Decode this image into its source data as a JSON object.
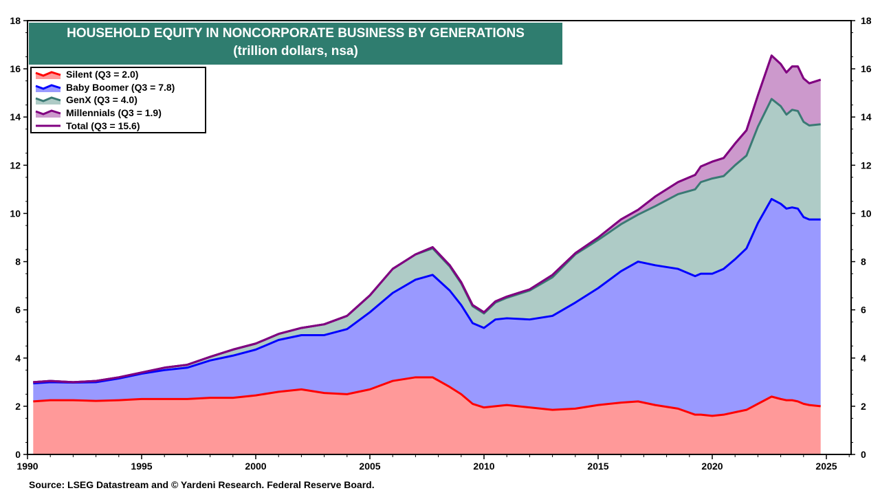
{
  "chart_data": {
    "type": "area",
    "stacked": true,
    "title": "HOUSEHOLD EQUITY IN NONCORPORATE BUSINESS BY GENERATIONS",
    "subtitle": "(trillion dollars, nsa)",
    "xlim": [
      1990,
      2026
    ],
    "ylim": [
      0,
      18
    ],
    "x_ticks": [
      "1990",
      "1995",
      "2000",
      "2005",
      "2010",
      "2015",
      "2020",
      "2025"
    ],
    "y_ticks": [
      "0",
      "2",
      "4",
      "6",
      "8",
      "10",
      "12",
      "14",
      "16",
      "18"
    ],
    "grid": false,
    "legend_position": "top-left",
    "x": [
      1990.25,
      1991,
      1992,
      1993,
      1994,
      1995,
      1996,
      1997,
      1998,
      1999,
      2000,
      2001,
      2002,
      2003,
      2004,
      2005,
      2006,
      2007,
      2007.75,
      2008.5,
      2009,
      2009.5,
      2010,
      2010.5,
      2011,
      2012,
      2013,
      2014,
      2015,
      2016,
      2016.75,
      2017.5,
      2018.5,
      2019.25,
      2019.5,
      2020,
      2020.5,
      2021,
      2021.5,
      2022,
      2022.6,
      2023,
      2023.25,
      2023.5,
      2023.75,
      2024,
      2024.25,
      2024.75
    ],
    "series": [
      {
        "name": "Silent",
        "legend": "Silent (Q3 = 2.0)",
        "fill": "#ff9999",
        "line": "#ff0000",
        "values": [
          2.2,
          2.25,
          2.25,
          2.22,
          2.25,
          2.3,
          2.3,
          2.3,
          2.35,
          2.35,
          2.45,
          2.6,
          2.7,
          2.55,
          2.5,
          2.7,
          3.05,
          3.2,
          3.2,
          2.8,
          2.5,
          2.1,
          1.95,
          2.0,
          2.05,
          1.95,
          1.85,
          1.9,
          2.05,
          2.15,
          2.2,
          2.05,
          1.9,
          1.65,
          1.65,
          1.6,
          1.65,
          1.75,
          1.85,
          2.1,
          2.4,
          2.3,
          2.25,
          2.25,
          2.2,
          2.1,
          2.05,
          2.0
        ]
      },
      {
        "name": "Baby Boomer",
        "legend": "Baby Boomer (Q3 = 7.8)",
        "fill": "#9999ff",
        "line": "#0000ff",
        "values": [
          0.75,
          0.75,
          0.73,
          0.78,
          0.9,
          1.05,
          1.2,
          1.3,
          1.55,
          1.75,
          1.9,
          2.15,
          2.25,
          2.4,
          2.7,
          3.2,
          3.65,
          4.05,
          4.25,
          4.0,
          3.7,
          3.35,
          3.3,
          3.6,
          3.6,
          3.65,
          3.9,
          4.4,
          4.85,
          5.45,
          5.8,
          5.8,
          5.8,
          5.75,
          5.85,
          5.9,
          6.05,
          6.35,
          6.7,
          7.5,
          8.2,
          8.1,
          7.95,
          8.0,
          8.0,
          7.75,
          7.7,
          7.75
        ]
      },
      {
        "name": "GenX",
        "legend": "GenX (Q3 = 4.0)",
        "fill": "#aecbc6",
        "line": "#3a7a74",
        "values": [
          0.05,
          0.05,
          0.02,
          0.05,
          0.05,
          0.05,
          0.1,
          0.12,
          0.15,
          0.25,
          0.25,
          0.25,
          0.3,
          0.45,
          0.55,
          0.7,
          1.0,
          1.05,
          1.1,
          1.0,
          0.9,
          0.7,
          0.6,
          0.7,
          0.85,
          1.2,
          1.6,
          2.0,
          2.0,
          1.95,
          1.95,
          2.45,
          3.1,
          3.6,
          3.8,
          3.95,
          3.85,
          3.9,
          3.85,
          4.0,
          4.15,
          4.05,
          3.9,
          4.05,
          4.05,
          3.95,
          3.9,
          3.95
        ]
      },
      {
        "name": "Millennials",
        "legend": "Millennials (Q3 = 1.9)",
        "fill": "#cc99cc",
        "line": "#800080",
        "values": [
          0,
          0,
          0,
          0,
          0,
          0,
          0,
          0,
          0,
          0,
          0,
          0,
          0,
          0,
          0,
          0,
          0,
          0,
          0.05,
          0.05,
          0.05,
          0.05,
          0.05,
          0.05,
          0.05,
          0.05,
          0.1,
          0.05,
          0.1,
          0.2,
          0.2,
          0.4,
          0.5,
          0.6,
          0.65,
          0.7,
          0.75,
          0.9,
          1.05,
          1.3,
          1.8,
          1.75,
          1.75,
          1.8,
          1.85,
          1.8,
          1.75,
          1.85
        ]
      }
    ],
    "total": {
      "name": "Total",
      "legend": "Total (Q3 = 15.6)",
      "line": "#800080"
    }
  },
  "title_bg": "#2f7d6f",
  "source": "Source: LSEG Datastream and © Yardeni Research. Federal Reserve Board."
}
